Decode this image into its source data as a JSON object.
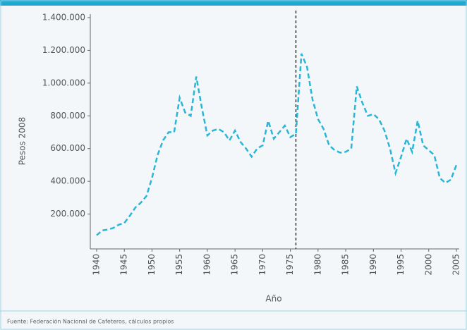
{
  "chart_data": {
    "type": "line",
    "xlabel": "Año",
    "ylabel": "Pesos 2008",
    "source": "Fuente: Federación Nacional de Cafeteros, cálculos propios",
    "x": [
      1940,
      1941,
      1942,
      1943,
      1944,
      1945,
      1946,
      1947,
      1948,
      1949,
      1950,
      1951,
      1952,
      1953,
      1954,
      1955,
      1956,
      1957,
      1958,
      1959,
      1960,
      1961,
      1962,
      1963,
      1964,
      1965,
      1966,
      1967,
      1968,
      1969,
      1970,
      1971,
      1972,
      1973,
      1974,
      1975,
      1976,
      1977,
      1978,
      1979,
      1980,
      1981,
      1982,
      1983,
      1984,
      1985,
      1986,
      1987,
      1988,
      1989,
      1990,
      1991,
      1992,
      1993,
      1994,
      1995,
      1996,
      1997,
      1998,
      1999,
      2000,
      2001,
      2002,
      2003,
      2004,
      2005
    ],
    "series": [
      {
        "color": "#2bb5d6",
        "values": [
          70000,
          100000,
          105000,
          115000,
          135000,
          145000,
          190000,
          240000,
          270000,
          310000,
          420000,
          560000,
          650000,
          700000,
          700000,
          910000,
          820000,
          800000,
          1040000,
          850000,
          680000,
          710000,
          720000,
          700000,
          650000,
          710000,
          640000,
          600000,
          550000,
          600000,
          620000,
          770000,
          660000,
          700000,
          740000,
          670000,
          690000,
          1180000,
          1100000,
          900000,
          780000,
          720000,
          620000,
          590000,
          575000,
          580000,
          600000,
          980000,
          880000,
          800000,
          810000,
          780000,
          710000,
          600000,
          450000,
          550000,
          660000,
          580000,
          770000,
          620000,
          590000,
          560000,
          420000,
          390000,
          410000,
          500000
        ]
      }
    ],
    "vline": 1976,
    "xlim": [
      1940,
      2005
    ],
    "xticks": [
      1940,
      1945,
      1950,
      1955,
      1960,
      1965,
      1970,
      1975,
      1980,
      1985,
      1990,
      1995,
      2000,
      2005
    ],
    "ylim": [
      0,
      1400000
    ],
    "yticks": [
      {
        "value": 200000,
        "label": "200.000"
      },
      {
        "value": 400000,
        "label": "400.000"
      },
      {
        "value": 600000,
        "label": "600.000"
      },
      {
        "value": 800000,
        "label": "800.000"
      },
      {
        "value": 1000000,
        "label": "1.000.000"
      },
      {
        "value": 1200000,
        "label": "1.200.000"
      },
      {
        "value": 1400000,
        "label": "1.400.000"
      }
    ]
  }
}
